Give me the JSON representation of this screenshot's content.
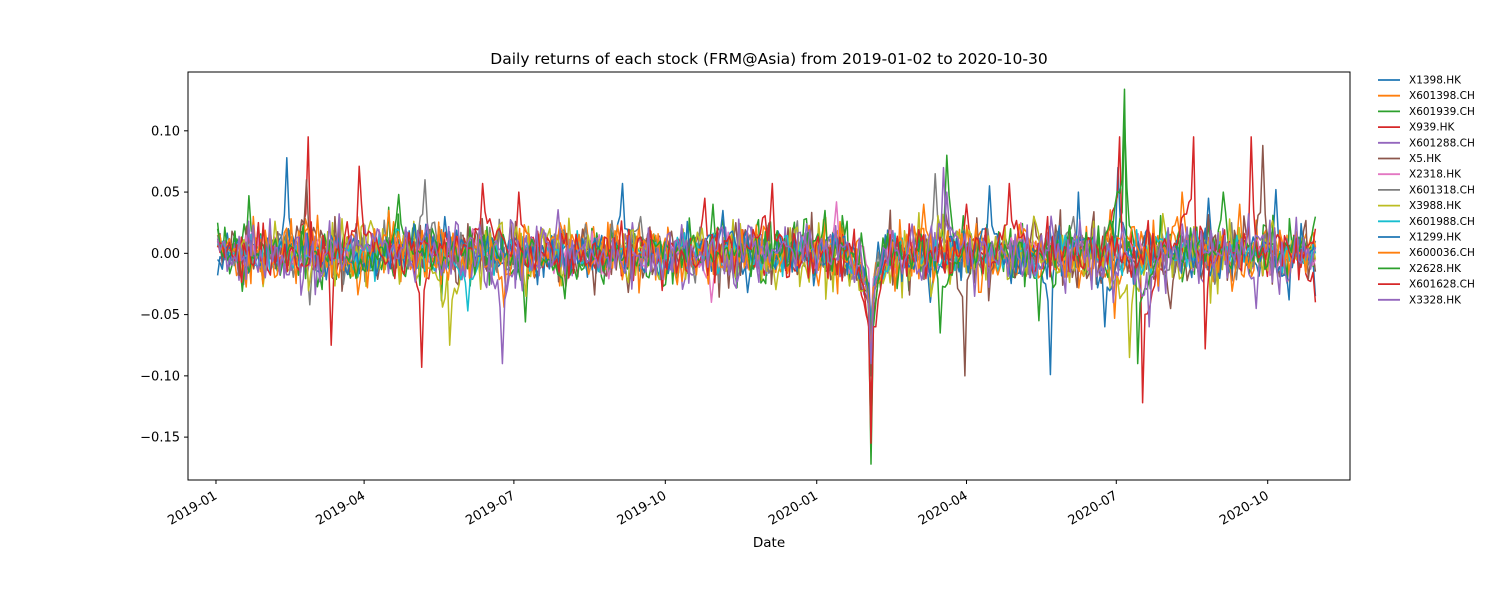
{
  "chart_data": {
    "type": "line",
    "title": "Daily returns of each stock (FRM@Asia) from 2019-01-02 to 2020-10-30",
    "xlabel": "Date",
    "ylabel": "",
    "x_range": [
      "2018-12-15",
      "2020-11-20"
    ],
    "ylim": [
      -0.185,
      0.148
    ],
    "x_ticks": [
      {
        "date": "2019-01-01",
        "label": "2019-01"
      },
      {
        "date": "2019-04-01",
        "label": "2019-04"
      },
      {
        "date": "2019-07-01",
        "label": "2019-07"
      },
      {
        "date": "2019-10-01",
        "label": "2019-10"
      },
      {
        "date": "2020-01-01",
        "label": "2020-01"
      },
      {
        "date": "2020-04-01",
        "label": "2020-04"
      },
      {
        "date": "2020-07-01",
        "label": "2020-07"
      },
      {
        "date": "2020-10-01",
        "label": "2020-10"
      }
    ],
    "y_ticks": [
      {
        "value": 0.1,
        "label": "0.10"
      },
      {
        "value": 0.05,
        "label": "0.05"
      },
      {
        "value": 0.0,
        "label": "0.00"
      },
      {
        "value": -0.05,
        "label": "−0.05"
      },
      {
        "value": -0.1,
        "label": "−0.10"
      },
      {
        "value": -0.15,
        "label": "−0.15"
      }
    ],
    "grid": false,
    "legend_position": "outside-right",
    "series": [
      {
        "name": "X1398.HK",
        "color": "#1f77b4",
        "points": [
          [
            "2019-01-02",
            -0.018
          ],
          [
            "2019-02-13",
            0.078
          ],
          [
            "2019-04-18",
            0.015
          ],
          [
            "2019-06-20",
            -0.012
          ],
          [
            "2019-09-05",
            0.057
          ],
          [
            "2019-11-20",
            -0.032
          ],
          [
            "2020-02-03",
            -0.062
          ],
          [
            "2020-03-10",
            -0.04
          ],
          [
            "2020-05-22",
            -0.099
          ],
          [
            "2020-06-08",
            0.05
          ],
          [
            "2020-07-02",
            0.07
          ],
          [
            "2020-08-26",
            0.045
          ],
          [
            "2020-10-06",
            0.052
          ],
          [
            "2020-10-30",
            -0.035
          ]
        ]
      },
      {
        "name": "X601398.CH",
        "color": "#ff7f0e",
        "points": [
          [
            "2019-01-02",
            0.012
          ],
          [
            "2019-03-28",
            0.03
          ],
          [
            "2019-06-25",
            -0.044
          ],
          [
            "2019-08-14",
            0.025
          ],
          [
            "2019-12-10",
            -0.015
          ],
          [
            "2020-02-03",
            -0.072
          ],
          [
            "2020-03-06",
            0.04
          ],
          [
            "2020-06-30",
            -0.053
          ],
          [
            "2020-09-14",
            0.04
          ],
          [
            "2020-10-30",
            0.0
          ]
        ]
      },
      {
        "name": "X601939.CH",
        "color": "#2ca02c",
        "points": [
          [
            "2019-01-02",
            0.02
          ],
          [
            "2019-01-21",
            0.047
          ],
          [
            "2019-03-28",
            -0.02
          ],
          [
            "2019-07-08",
            -0.056
          ],
          [
            "2019-10-30",
            0.04
          ],
          [
            "2020-02-03",
            -0.086
          ],
          [
            "2020-03-20",
            0.08
          ],
          [
            "2020-05-15",
            -0.055
          ],
          [
            "2020-07-06",
            0.11
          ],
          [
            "2020-09-04",
            0.05
          ],
          [
            "2020-10-30",
            -0.01
          ]
        ]
      },
      {
        "name": "X939.HK",
        "color": "#d62728",
        "points": [
          [
            "2019-01-02",
            0.01
          ],
          [
            "2019-02-26",
            0.095
          ],
          [
            "2019-03-12",
            -0.075
          ],
          [
            "2019-05-06",
            -0.093
          ],
          [
            "2019-07-04",
            0.05
          ],
          [
            "2019-10-25",
            0.045
          ],
          [
            "2020-02-03",
            -0.13
          ],
          [
            "2020-04-01",
            0.04
          ],
          [
            "2020-07-03",
            0.095
          ],
          [
            "2020-07-17",
            -0.122
          ],
          [
            "2020-10-30",
            -0.04
          ]
        ]
      },
      {
        "name": "X601288.CH",
        "color": "#9467bd",
        "points": [
          [
            "2019-01-02",
            0.008
          ],
          [
            "2019-03-18",
            -0.015
          ],
          [
            "2019-06-24",
            -0.09
          ],
          [
            "2019-09-11",
            0.025
          ],
          [
            "2020-02-03",
            -0.08
          ],
          [
            "2020-03-20",
            0.05
          ],
          [
            "2020-06-22",
            -0.02
          ],
          [
            "2020-09-24",
            -0.045
          ],
          [
            "2020-10-30",
            0.01
          ]
        ]
      },
      {
        "name": "X5.HK",
        "color": "#8c564b",
        "points": [
          [
            "2019-01-02",
            0.005
          ],
          [
            "2019-02-25",
            0.06
          ],
          [
            "2019-04-25",
            0.015
          ],
          [
            "2019-07-15",
            -0.015
          ],
          [
            "2019-10-15",
            0.01
          ],
          [
            "2020-02-03",
            -0.1
          ],
          [
            "2020-03-31",
            -0.1
          ],
          [
            "2020-05-12",
            0.03
          ],
          [
            "2020-08-03",
            -0.045
          ],
          [
            "2020-09-28",
            0.088
          ],
          [
            "2020-10-30",
            -0.015
          ]
        ]
      },
      {
        "name": "X2318.HK",
        "color": "#e377c2",
        "points": [
          [
            "2019-01-02",
            0.01
          ],
          [
            "2019-03-28",
            -0.015
          ],
          [
            "2019-06-06",
            0.02
          ],
          [
            "2019-10-29",
            -0.04
          ],
          [
            "2020-01-13",
            0.042
          ],
          [
            "2020-02-03",
            -0.058
          ],
          [
            "2020-05-04",
            0.025
          ],
          [
            "2020-10-30",
            -0.005
          ]
        ]
      },
      {
        "name": "X601318.CH",
        "color": "#7f7f7f",
        "points": [
          [
            "2019-01-02",
            0.015
          ],
          [
            "2019-02-27",
            -0.042
          ],
          [
            "2019-05-08",
            0.06
          ],
          [
            "2019-09-16",
            0.03
          ],
          [
            "2020-02-03",
            -0.055
          ],
          [
            "2020-03-13",
            0.065
          ],
          [
            "2020-06-05",
            0.03
          ],
          [
            "2020-10-30",
            0.005
          ]
        ]
      },
      {
        "name": "X3988.HK",
        "color": "#bcbd22",
        "points": [
          [
            "2019-01-02",
            0.005
          ],
          [
            "2019-05-23",
            -0.075
          ],
          [
            "2019-08-15",
            0.015
          ],
          [
            "2020-02-03",
            -0.07
          ],
          [
            "2020-07-09",
            -0.085
          ],
          [
            "2020-10-30",
            -0.005
          ]
        ]
      },
      {
        "name": "X601988.CH",
        "color": "#17becf",
        "points": [
          [
            "2019-01-02",
            0.008
          ],
          [
            "2019-06-03",
            -0.047
          ],
          [
            "2019-09-02",
            0.01
          ],
          [
            "2020-02-03",
            -0.06
          ],
          [
            "2020-05-28",
            0.015
          ],
          [
            "2020-10-30",
            0.0
          ]
        ]
      },
      {
        "name": "X1299.HK",
        "color": "#1f77b4",
        "points": [
          [
            "2019-01-02",
            -0.005
          ],
          [
            "2019-02-14",
            0.02
          ],
          [
            "2019-05-20",
            0.03
          ],
          [
            "2019-11-05",
            0.035
          ],
          [
            "2020-02-03",
            -0.07
          ],
          [
            "2020-04-15",
            0.055
          ],
          [
            "2020-06-24",
            -0.06
          ],
          [
            "2020-10-14",
            -0.038
          ],
          [
            "2020-10-30",
            0.01
          ]
        ]
      },
      {
        "name": "X600036.CH",
        "color": "#ff7f0e",
        "points": [
          [
            "2019-01-02",
            0.015
          ],
          [
            "2019-04-16",
            0.035
          ],
          [
            "2019-07-29",
            0.025
          ],
          [
            "2019-12-20",
            -0.01
          ],
          [
            "2020-02-03",
            -0.085
          ],
          [
            "2020-05-06",
            0.02
          ],
          [
            "2020-08-10",
            0.05
          ],
          [
            "2020-10-30",
            0.005
          ]
        ]
      },
      {
        "name": "X2628.HK",
        "color": "#2ca02c",
        "points": [
          [
            "2019-01-02",
            0.025
          ],
          [
            "2019-01-17",
            -0.031
          ],
          [
            "2019-04-22",
            0.048
          ],
          [
            "2019-08-01",
            -0.037
          ],
          [
            "2020-01-06",
            0.035
          ],
          [
            "2020-02-03",
            -0.172
          ],
          [
            "2020-03-16",
            -0.065
          ],
          [
            "2020-07-06",
            0.134
          ],
          [
            "2020-07-14",
            -0.09
          ],
          [
            "2020-10-30",
            0.03
          ]
        ]
      },
      {
        "name": "X601628.CH",
        "color": "#d62728",
        "points": [
          [
            "2019-01-02",
            0.005
          ],
          [
            "2019-03-29",
            0.071
          ],
          [
            "2019-06-12",
            0.057
          ],
          [
            "2019-12-05",
            0.057
          ],
          [
            "2020-02-03",
            -0.155
          ],
          [
            "2020-04-27",
            0.057
          ],
          [
            "2020-08-17",
            0.095
          ],
          [
            "2020-08-24",
            -0.078
          ],
          [
            "2020-09-21",
            0.095
          ],
          [
            "2020-10-30",
            0.02
          ]
        ]
      },
      {
        "name": "X3328.HK",
        "color": "#9467bd",
        "points": [
          [
            "2019-01-02",
            0.012
          ],
          [
            "2019-04-09",
            0.02
          ],
          [
            "2019-08-20",
            -0.005
          ],
          [
            "2019-12-12",
            0.01
          ],
          [
            "2020-02-03",
            -0.09
          ],
          [
            "2020-03-18",
            0.07
          ],
          [
            "2020-07-21",
            -0.06
          ],
          [
            "2020-09-28",
            0.015
          ],
          [
            "2020-10-30",
            0.005
          ]
        ]
      }
    ]
  }
}
